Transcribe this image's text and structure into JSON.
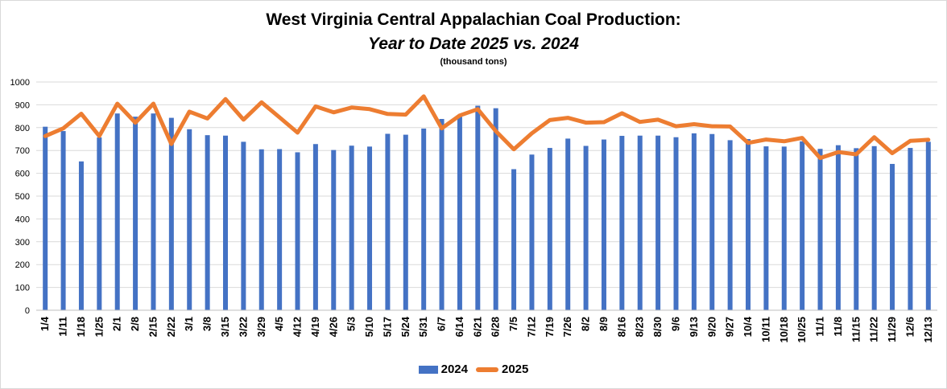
{
  "chart_data": {
    "type": "bar+line",
    "title": "West Virginia Central Appalachian Coal Production:",
    "subtitle": "Year to Date 2025 vs. 2024",
    "units": "(thousand tons)",
    "ylim": [
      0,
      1000
    ],
    "yticks": [
      0,
      100,
      200,
      300,
      400,
      500,
      600,
      700,
      800,
      900,
      1000
    ],
    "grid": true,
    "legend_position": "bottom",
    "categories": [
      "1/4",
      "1/11",
      "1/18",
      "1/25",
      "2/1",
      "2/8",
      "2/15",
      "2/22",
      "3/1",
      "3/8",
      "3/15",
      "3/22",
      "3/29",
      "4/5",
      "4/12",
      "4/19",
      "4/26",
      "5/3",
      "5/10",
      "5/17",
      "5/24",
      "5/31",
      "6/7",
      "6/14",
      "6/21",
      "6/28",
      "7/5",
      "7/12",
      "7/19",
      "7/26",
      "8/2",
      "8/9",
      "8/16",
      "8/23",
      "8/30",
      "9/6",
      "9/13",
      "9/20",
      "9/27",
      "10/4",
      "10/11",
      "10/18",
      "10/25",
      "11/1",
      "11/8",
      "11/15",
      "11/22",
      "11/29",
      "12/6",
      "12/13"
    ],
    "series": [
      {
        "name": "2024",
        "kind": "bar",
        "color": "#4472c4",
        "values": [
          804,
          785,
          652,
          757,
          862,
          848,
          862,
          843,
          793,
          767,
          765,
          738,
          705,
          706,
          692,
          728,
          702,
          721,
          717,
          773,
          769,
          796,
          838,
          848,
          896,
          885,
          618,
          682,
          711,
          752,
          720,
          748,
          764,
          765,
          765,
          758,
          775,
          772,
          745,
          750,
          718,
          717,
          740,
          707,
          723,
          710,
          719,
          641,
          711,
          738
        ]
      },
      {
        "name": "2025",
        "kind": "line",
        "color": "#ed7d31",
        "values": [
          763,
          797,
          861,
          763,
          905,
          822,
          905,
          728,
          870,
          840,
          925,
          835,
          911,
          845,
          778,
          893,
          867,
          888,
          881,
          860,
          857,
          937,
          797,
          853,
          881,
          785,
          705,
          775,
          833,
          843,
          822,
          824,
          863,
          825,
          835,
          806,
          815,
          806,
          805,
          733,
          748,
          740,
          755,
          667,
          693,
          683,
          758,
          688,
          742,
          747
        ]
      }
    ]
  }
}
